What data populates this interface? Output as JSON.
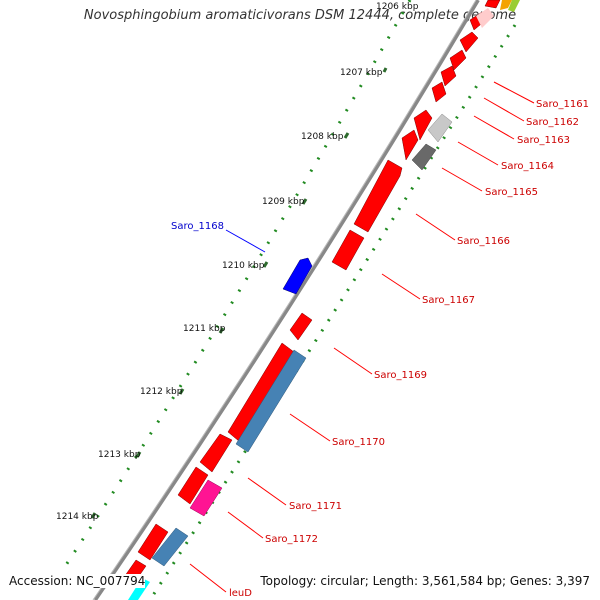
{
  "title": "Novosphingobium aromaticivorans DSM 12444, complete genome",
  "footer": {
    "accession": "Accession: NC_007794",
    "summary": "Topology: circular; Length: 3,561,584 bp; Genes: 3,397"
  },
  "ticks": [
    {
      "label": "1206 kbp"
    },
    {
      "label": "1207 kbp"
    },
    {
      "label": "1208 kbp"
    },
    {
      "label": "1209 kbp"
    },
    {
      "label": "1210 kbp"
    },
    {
      "label": "1211 kbp"
    },
    {
      "label": "1212 kbp"
    },
    {
      "label": "1213 kbp"
    },
    {
      "label": "1214 kbp"
    }
  ],
  "gene_labels": [
    {
      "name": "Saro_1161",
      "color": "#cc0000"
    },
    {
      "name": "Saro_1162",
      "color": "#cc0000"
    },
    {
      "name": "Saro_1163",
      "color": "#cc0000"
    },
    {
      "name": "Saro_1164",
      "color": "#cc0000"
    },
    {
      "name": "Saro_1165",
      "color": "#cc0000"
    },
    {
      "name": "Saro_1166",
      "color": "#cc0000"
    },
    {
      "name": "Saro_1167",
      "color": "#cc0000"
    },
    {
      "name": "Saro_1168",
      "color": "#0000cc"
    },
    {
      "name": "Saro_1169",
      "color": "#cc0000"
    },
    {
      "name": "Saro_1170",
      "color": "#cc0000"
    },
    {
      "name": "Saro_1171",
      "color": "#cc0000"
    },
    {
      "name": "Saro_1172",
      "color": "#cc0000"
    },
    {
      "name": "leuD",
      "color": "#cc0000"
    }
  ],
  "colors": {
    "cds_red": "#ff0000",
    "cds_blue": "#0000ff",
    "cds_steelblue": "#4682b4",
    "cds_magenta": "#ff1493",
    "cds_lightgray": "#c8c8c8",
    "cds_darkgray": "#696969",
    "cds_cyan": "#00ffff",
    "backbone": "#888888",
    "gc_dots": "#228b22"
  }
}
